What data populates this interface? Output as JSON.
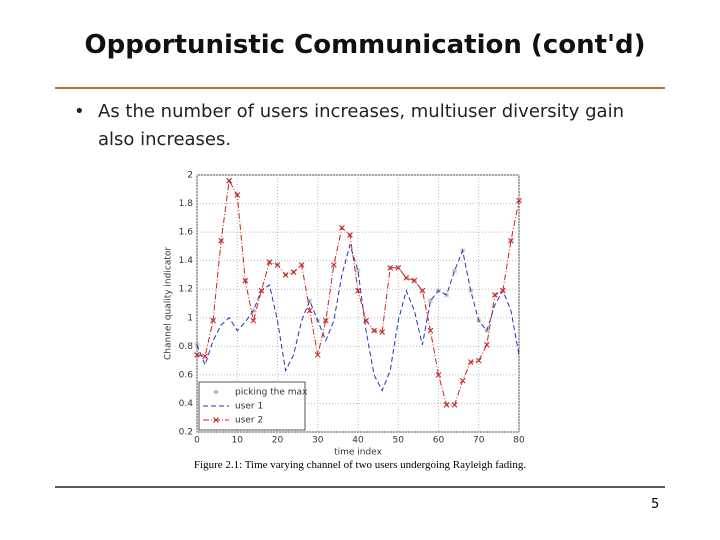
{
  "header": {
    "title": "Opportunistic Communication (cont'd)"
  },
  "body": {
    "bullet": "As the number of users increases, multiuser diversity gain also increases."
  },
  "chart_data": {
    "type": "line",
    "xlabel": "time index",
    "ylabel": "Channel quality indicator",
    "x": [
      0,
      2,
      4,
      6,
      8,
      10,
      12,
      14,
      16,
      18,
      20,
      22,
      24,
      26,
      28,
      30,
      32,
      34,
      36,
      38,
      40,
      42,
      44,
      46,
      48,
      50,
      52,
      54,
      56,
      58,
      60,
      62,
      64,
      66,
      68,
      70,
      72,
      74,
      76,
      78,
      80
    ],
    "series": [
      {
        "name": "picking the max",
        "color": "#888888",
        "linestyle": "none",
        "marker": "star",
        "values": [
          0.81,
          0.73,
          0.98,
          1.54,
          1.96,
          1.86,
          1.26,
          1.05,
          1.19,
          1.39,
          1.37,
          1.3,
          1.32,
          1.37,
          1.12,
          0.98,
          0.98,
          1.37,
          1.63,
          1.58,
          1.33,
          0.98,
          0.91,
          0.9,
          1.35,
          1.35,
          1.28,
          1.26,
          1.19,
          1.12,
          1.19,
          1.16,
          1.33,
          1.47,
          1.19,
          0.98,
          0.91,
          1.16,
          1.19,
          1.54,
          1.82
        ]
      },
      {
        "name": "user 1",
        "color": "#2233bb",
        "linestyle": "dashed",
        "marker": "none",
        "values": [
          0.81,
          0.67,
          0.84,
          0.95,
          1.0,
          0.91,
          0.97,
          1.05,
          1.19,
          1.23,
          0.98,
          0.63,
          0.74,
          0.98,
          1.12,
          0.98,
          0.84,
          0.98,
          1.3,
          1.51,
          1.33,
          0.91,
          0.6,
          0.49,
          0.63,
          0.98,
          1.19,
          1.05,
          0.81,
          1.12,
          1.19,
          1.16,
          1.33,
          1.47,
          1.19,
          0.98,
          0.91,
          1.09,
          1.19,
          1.05,
          0.74
        ]
      },
      {
        "name": "user 2",
        "color": "#cc2222",
        "linestyle": "dashdot",
        "marker": "x",
        "values": [
          0.74,
          0.73,
          0.98,
          1.54,
          1.96,
          1.86,
          1.26,
          0.98,
          1.19,
          1.39,
          1.37,
          1.3,
          1.32,
          1.37,
          1.05,
          0.74,
          0.98,
          1.37,
          1.63,
          1.58,
          1.19,
          0.98,
          0.91,
          0.9,
          1.35,
          1.35,
          1.28,
          1.26,
          1.19,
          0.91,
          0.6,
          0.39,
          0.39,
          0.56,
          0.69,
          0.7,
          0.81,
          1.16,
          1.19,
          1.54,
          1.82
        ]
      }
    ],
    "xlim": [
      0,
      80
    ],
    "xticks": [
      0,
      10,
      20,
      30,
      40,
      50,
      60,
      70,
      80
    ],
    "ylim": [
      0.2,
      2
    ],
    "yticks": [
      0.2,
      0.4,
      0.6,
      0.8,
      1,
      1.2,
      1.4,
      1.6,
      1.8,
      2
    ],
    "grid": true,
    "legend": "lower left"
  },
  "caption": "Figure 2.1: Time varying channel of two users undergoing Rayleigh fading.",
  "page_number": "5"
}
